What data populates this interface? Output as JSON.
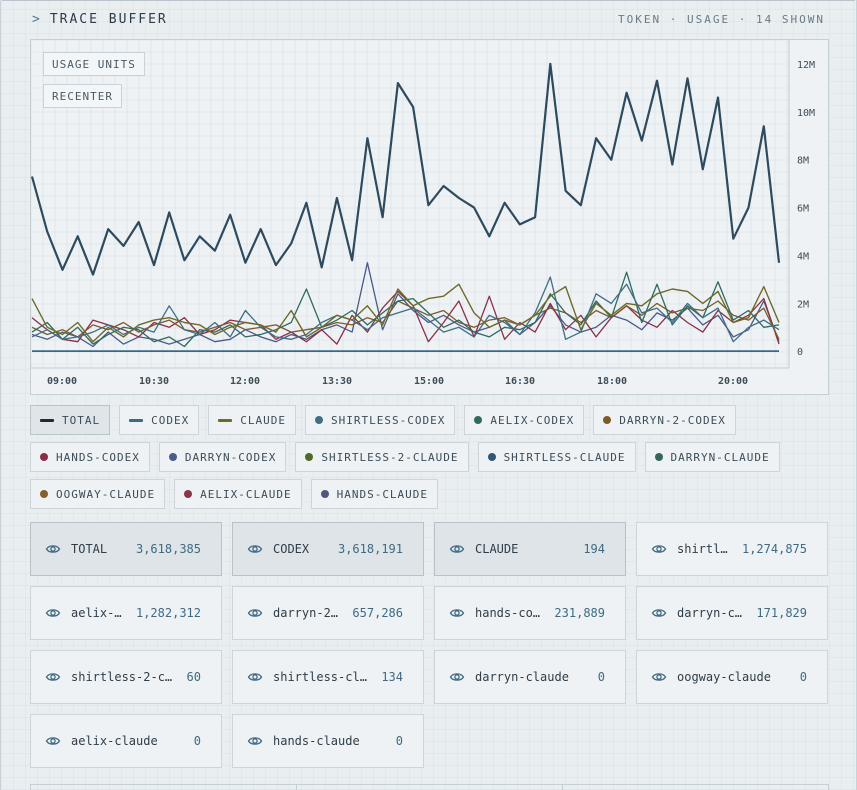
{
  "header": {
    "caret": ">",
    "title": "TRACE BUFFER",
    "meta": "TOKEN · USAGE · 14 SHOWN"
  },
  "chart_controls": {
    "units_label": "USAGE UNITS",
    "recenter_label": "RECENTER"
  },
  "chart_data": {
    "type": "line",
    "title": "",
    "xlabel": "",
    "ylabel": "Usage units",
    "x_ticks": [
      "09:00",
      "10:30",
      "12:00",
      "13:30",
      "15:00",
      "16:30",
      "18:00",
      "20:00"
    ],
    "y_ticks": [
      {
        "value": 12000000,
        "label": "12M"
      },
      {
        "value": 10000000,
        "label": "10M"
      },
      {
        "value": 8000000,
        "label": "8M"
      },
      {
        "value": 6000000,
        "label": "6M"
      },
      {
        "value": 4000000,
        "label": "4M"
      },
      {
        "value": 2000000,
        "label": "2M"
      },
      {
        "value": 0,
        "label": "0"
      }
    ],
    "ylim": [
      -700000,
      13000000
    ],
    "grid": true,
    "series": [
      {
        "name": "TOTAL",
        "color": "#2e4a5e",
        "width": 2.2,
        "values": [
          7.3,
          5.0,
          3.4,
          4.8,
          3.2,
          5.1,
          4.4,
          5.4,
          3.6,
          5.8,
          3.8,
          4.8,
          4.2,
          5.7,
          3.7,
          5.1,
          3.6,
          4.5,
          6.2,
          3.5,
          6.4,
          3.8,
          8.9,
          5.6,
          11.2,
          10.2,
          6.1,
          6.9,
          6.4,
          6.0,
          4.8,
          6.2,
          5.3,
          5.6,
          12.0,
          6.7,
          6.1,
          8.9,
          8.0,
          10.8,
          8.8,
          11.3,
          7.8,
          11.4,
          7.6,
          10.6,
          4.7,
          6.0,
          9.4,
          3.7
        ]
      },
      {
        "name": "CODEX",
        "color": "#3b6a85",
        "width": 1.6,
        "values": [
          0.01,
          0.01,
          0.01,
          0.01,
          0.01,
          0.01,
          0.01,
          0.01,
          0.01,
          0.01,
          0.01,
          0.01,
          0.01,
          0.01,
          0.01,
          0.01,
          0.01,
          0.01,
          0.01,
          0.01,
          0.01,
          0.01,
          0.01,
          0.01,
          0.01,
          0.01,
          0.01,
          0.01,
          0.01,
          0.01,
          0.01,
          0.01,
          0.01,
          0.01,
          0.01,
          0.01,
          0.01,
          0.01,
          0.01,
          0.01,
          0.01,
          0.01,
          0.01,
          0.01,
          0.01,
          0.01,
          0.01,
          0.01,
          0.01,
          0.01
        ]
      },
      {
        "name": "CLAUDE",
        "color": "#6e6a2a",
        "width": 1.4,
        "values": [
          2.2,
          1.0,
          0.7,
          1.2,
          0.4,
          1.0,
          0.6,
          1.1,
          1.3,
          1.4,
          1.2,
          1.1,
          0.7,
          1.0,
          1.2,
          1.1,
          0.8,
          1.7,
          0.6,
          1.0,
          1.5,
          1.3,
          1.9,
          1.1,
          2.6,
          1.9,
          2.2,
          2.3,
          2.8,
          1.6,
          1.0,
          1.3,
          1.1,
          1.5,
          2.3,
          2.7,
          0.9,
          2.0,
          1.5,
          2.0,
          1.9,
          2.4,
          2.6,
          2.5,
          2.0,
          2.5,
          1.2,
          1.4,
          2.7,
          1.2
        ]
      },
      {
        "name": "SHIRTLESS-CODEX",
        "color": "#3f6e86",
        "width": 1.3,
        "values": [
          0.6,
          0.9,
          0.5,
          0.6,
          0.8,
          1.1,
          0.7,
          1.0,
          0.8,
          1.9,
          0.9,
          0.7,
          1.2,
          0.6,
          1.7,
          1.0,
          0.6,
          0.5,
          0.7,
          1.2,
          1.5,
          1.3,
          0.9,
          1.4,
          1.6,
          1.8,
          1.3,
          0.8,
          1.0,
          0.6,
          1.5,
          1.2,
          0.7,
          1.6,
          3.1,
          0.5,
          0.8,
          2.4,
          2.0,
          2.8,
          1.6,
          1.8,
          1.2,
          2.0,
          1.4,
          1.8,
          0.4,
          1.0,
          1.3,
          0.9
        ]
      },
      {
        "name": "AELIX-CODEX",
        "color": "#2f6a5e",
        "width": 1.3,
        "values": [
          0.8,
          1.2,
          0.5,
          1.0,
          0.3,
          0.7,
          1.0,
          0.9,
          0.4,
          0.6,
          0.2,
          0.9,
          0.8,
          1.1,
          0.6,
          0.7,
          0.9,
          1.2,
          2.6,
          1.0,
          1.3,
          1.7,
          1.1,
          1.6,
          2.1,
          2.2,
          1.6,
          1.0,
          1.3,
          0.8,
          0.6,
          1.0,
          0.9,
          1.2,
          2.4,
          1.6,
          1.1,
          2.1,
          1.4,
          3.3,
          1.2,
          2.8,
          1.1,
          1.9,
          1.4,
          2.9,
          1.3,
          1.7,
          1.0,
          1.1
        ]
      },
      {
        "name": "DARRYN-2-CODEX",
        "color": "#7d5a2a",
        "width": 1.3,
        "values": [
          1.0,
          0.7,
          0.9,
          0.6,
          1.1,
          0.9,
          1.2,
          0.8,
          1.1,
          1.3,
          0.9,
          0.8,
          1.0,
          1.2,
          0.9,
          1.0,
          1.1,
          0.8,
          0.9,
          1.0,
          1.2,
          1.1,
          1.4,
          1.2,
          2.1,
          1.8,
          1.5,
          1.7,
          1.2,
          1.0,
          1.3,
          1.4,
          1.1,
          1.5,
          1.8,
          1.6,
          1.2,
          1.7,
          1.4,
          1.9,
          1.5,
          2.0,
          1.6,
          1.8,
          1.7,
          2.1,
          1.5,
          1.3,
          1.8,
          0.5
        ]
      },
      {
        "name": "HANDS-CODEX",
        "color": "#8a2f48",
        "width": 1.3,
        "values": [
          1.4,
          0.9,
          0.5,
          0.4,
          1.3,
          1.1,
          0.9,
          0.6,
          1.2,
          1.0,
          1.4,
          0.7,
          0.9,
          1.3,
          1.2,
          1.1,
          0.5,
          0.8,
          0.4,
          0.9,
          0.3,
          1.5,
          0.8,
          1.8,
          2.5,
          1.9,
          0.4,
          1.2,
          2.1,
          0.6,
          2.3,
          0.5,
          1.2,
          0.8,
          2.0,
          0.9,
          1.5,
          0.6,
          1.4,
          1.9,
          1.3,
          1.0,
          1.7,
          1.2,
          0.8,
          1.7,
          1.2,
          1.5,
          2.2,
          0.3
        ]
      },
      {
        "name": "DARRYN-CODEX",
        "color": "#4b5a8a",
        "width": 1.3,
        "values": [
          0.7,
          0.5,
          0.8,
          0.6,
          0.2,
          0.8,
          0.3,
          0.6,
          0.5,
          0.3,
          0.5,
          0.7,
          0.4,
          0.5,
          0.9,
          0.6,
          0.4,
          0.7,
          0.5,
          0.9,
          1.1,
          0.8,
          3.7,
          0.9,
          2.4,
          1.7,
          1.2,
          1.5,
          1.1,
          0.8,
          1.0,
          1.3,
          0.7,
          1.2,
          1.9,
          1.1,
          0.8,
          1.0,
          1.5,
          1.3,
          0.9,
          1.6,
          1.3,
          1.8,
          1.1,
          1.5,
          0.6,
          0.9,
          2.1,
          0.4
        ]
      },
      {
        "name": "SHIRTLESS-2-CLAUDE",
        "color": "#4e6a26",
        "width": 1.0,
        "values": [
          0,
          0,
          0,
          0,
          0,
          0,
          0,
          0,
          0,
          0,
          0,
          0,
          0,
          0,
          0,
          0,
          0,
          0,
          0,
          0,
          0,
          0,
          0,
          0,
          0,
          0,
          0,
          0,
          0,
          0,
          0,
          0,
          0,
          0,
          0,
          0,
          0,
          0,
          0,
          0,
          0,
          0,
          0,
          0,
          0,
          0,
          0,
          0,
          0,
          0
        ]
      },
      {
        "name": "SHIRTLESS-CLAUDE",
        "color": "#2f5870",
        "width": 1.0,
        "values": [
          0,
          0,
          0,
          0,
          0,
          0,
          0,
          0,
          0,
          0,
          0,
          0,
          0,
          0,
          0,
          0,
          0,
          0,
          0,
          0,
          0,
          0,
          0,
          0,
          0,
          0,
          0,
          0,
          0,
          0,
          0,
          0,
          0,
          0,
          0,
          0,
          0,
          0,
          0,
          0,
          0,
          0,
          0,
          0,
          0,
          0,
          0,
          0,
          0,
          0
        ]
      },
      {
        "name": "DARRYN-CLAUDE",
        "color": "#36665a",
        "width": 1.0,
        "values": [
          0,
          0,
          0,
          0,
          0,
          0,
          0,
          0,
          0,
          0,
          0,
          0,
          0,
          0,
          0,
          0,
          0,
          0,
          0,
          0,
          0,
          0,
          0,
          0,
          0,
          0,
          0,
          0,
          0,
          0,
          0,
          0,
          0,
          0,
          0,
          0,
          0,
          0,
          0,
          0,
          0,
          0,
          0,
          0,
          0,
          0,
          0,
          0,
          0,
          0
        ]
      },
      {
        "name": "OOGWAY-CLAUDE",
        "color": "#85602c",
        "width": 1.0,
        "values": [
          0,
          0,
          0,
          0,
          0,
          0,
          0,
          0,
          0,
          0,
          0,
          0,
          0,
          0,
          0,
          0,
          0,
          0,
          0,
          0,
          0,
          0,
          0,
          0,
          0,
          0,
          0,
          0,
          0,
          0,
          0,
          0,
          0,
          0,
          0,
          0,
          0,
          0,
          0,
          0,
          0,
          0,
          0,
          0,
          0,
          0,
          0,
          0,
          0,
          0
        ]
      },
      {
        "name": "AELIX-CLAUDE",
        "color": "#8a3446",
        "width": 1.0,
        "values": [
          0,
          0,
          0,
          0,
          0,
          0,
          0,
          0,
          0,
          0,
          0,
          0,
          0,
          0,
          0,
          0,
          0,
          0,
          0,
          0,
          0,
          0,
          0,
          0,
          0,
          0,
          0,
          0,
          0,
          0,
          0,
          0,
          0,
          0,
          0,
          0,
          0,
          0,
          0,
          0,
          0,
          0,
          0,
          0,
          0,
          0,
          0,
          0,
          0,
          0
        ]
      },
      {
        "name": "HANDS-CLAUDE",
        "color": "#4f5680",
        "width": 1.0,
        "values": [
          0,
          0,
          0,
          0,
          0,
          0,
          0,
          0,
          0,
          0,
          0,
          0,
          0,
          0,
          0,
          0,
          0,
          0,
          0,
          0,
          0,
          0,
          0,
          0,
          0,
          0,
          0,
          0,
          0,
          0,
          0,
          0,
          0,
          0,
          0,
          0,
          0,
          0,
          0,
          0,
          0,
          0,
          0,
          0,
          0,
          0,
          0,
          0,
          0,
          0
        ]
      }
    ],
    "value_scale": "millions"
  },
  "legend": [
    {
      "label": "TOTAL",
      "kind": "line",
      "color": "#1f2a33",
      "active": true
    },
    {
      "label": "CODEX",
      "kind": "line",
      "color": "#3b6a85",
      "active": false
    },
    {
      "label": "CLAUDE",
      "kind": "line",
      "color": "#6e6a2a",
      "active": false
    },
    {
      "label": "SHIRTLESS-CODEX",
      "kind": "dot",
      "color": "#3f6e86",
      "active": false
    },
    {
      "label": "AELIX-CODEX",
      "kind": "dot",
      "color": "#2f6a5e",
      "active": false
    },
    {
      "label": "DARRYN-2-CODEX",
      "kind": "dot",
      "color": "#7d5a2a",
      "active": false
    },
    {
      "label": "HANDS-CODEX",
      "kind": "dot",
      "color": "#8a2f48",
      "active": false
    },
    {
      "label": "DARRYN-CODEX",
      "kind": "dot",
      "color": "#4b5a8a",
      "active": false
    },
    {
      "label": "SHIRTLESS-2-CLAUDE",
      "kind": "dot",
      "color": "#4e6a26",
      "active": false
    },
    {
      "label": "SHIRTLESS-CLAUDE",
      "kind": "dot",
      "color": "#2f5870",
      "active": false
    },
    {
      "label": "DARRYN-CLAUDE",
      "kind": "dot",
      "color": "#36665a",
      "active": false
    },
    {
      "label": "OOGWAY-CLAUDE",
      "kind": "dot",
      "color": "#85602c",
      "active": false
    },
    {
      "label": "AELIX-CLAUDE",
      "kind": "dot",
      "color": "#8a3446",
      "active": false
    },
    {
      "label": "HANDS-CLAUDE",
      "kind": "dot",
      "color": "#4f5680",
      "active": false
    }
  ],
  "cards": [
    {
      "name": "TOTAL",
      "value": "3,618,385",
      "active": true
    },
    {
      "name": "CODEX",
      "value": "3,618,191",
      "active": true
    },
    {
      "name": "CLAUDE",
      "value": "194",
      "active": true
    },
    {
      "name": "shirtless-codex",
      "value": "1,274,875",
      "active": false
    },
    {
      "name": "aelix-codex",
      "value": "1,282,312",
      "active": false
    },
    {
      "name": "darryn-2-codex",
      "value": "657,286",
      "active": false
    },
    {
      "name": "hands-codex",
      "value": "231,889",
      "active": false
    },
    {
      "name": "darryn-codex",
      "value": "171,829",
      "active": false
    },
    {
      "name": "shirtless-2-claude",
      "value": "60",
      "active": false
    },
    {
      "name": "shirtless-claude",
      "value": "134",
      "active": false
    },
    {
      "name": "darryn-claude",
      "value": "0",
      "active": false
    },
    {
      "name": "oogway-claude",
      "value": "0",
      "active": false
    },
    {
      "name": "aelix-claude",
      "value": "0",
      "active": false
    },
    {
      "name": "hands-claude",
      "value": "0",
      "active": false
    }
  ],
  "colors": {
    "accent": "#3f6a82",
    "background": "#e9eef1"
  }
}
